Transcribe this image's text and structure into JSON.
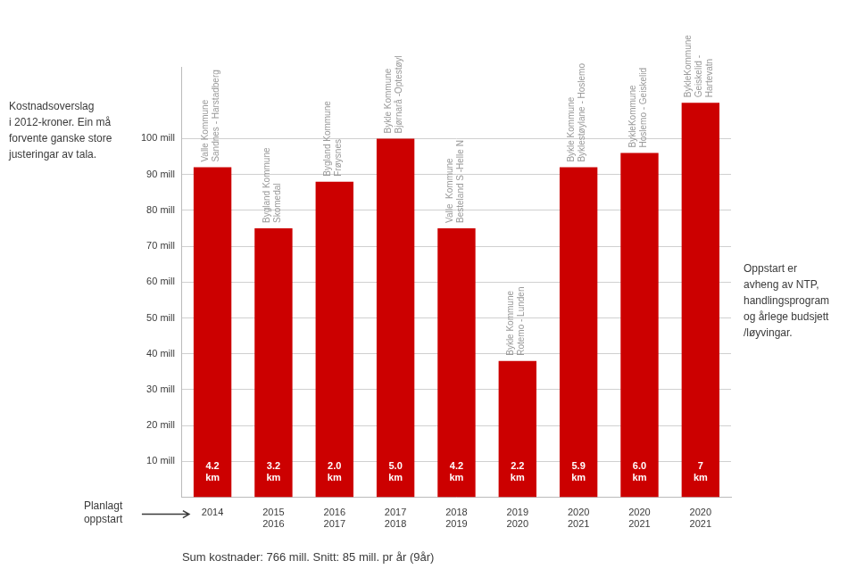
{
  "chart_data": {
    "type": "bar",
    "categories": [
      "2014",
      "2015\n2016",
      "2016\n2017",
      "2017\n2018",
      "2018\n2019",
      "2019\n2020",
      "2020\n2021",
      "2020\n2021",
      "2020\n2021"
    ],
    "values": [
      92,
      75,
      88,
      100,
      75,
      38,
      92,
      96,
      110
    ],
    "color": "#cc0000",
    "km_labels": [
      "4.2\nkm",
      "3.2\nkm",
      "2.0\nkm",
      "5.0\nkm",
      "4.2\nkm",
      "2.2\nkm",
      "5.9\nkm",
      "6.0\nkm",
      "7\nkm"
    ],
    "bar_labels": [
      "Valle Kommune\nSandnes - Harstadberg",
      "Bygland Kommune\nSkomedal",
      "Bygland Kommune\nFrøysnes",
      "Bykle Kommune\nBjørnarå -Optestøyl",
      "Valle  Kommune\nBesteland S -Helle N",
      "Bykle Kommune\nRotemo - Lunden",
      "Bykle Kommune\nByklestøylane - Hoslemo",
      "BykleKommune\nHoslemo - Geiskelid",
      "BykleKommune\nGeiskelid -\nHartevatn"
    ],
    "ylim": [
      0,
      120
    ],
    "yticks": [
      {
        "value": 10,
        "label": "10 mill"
      },
      {
        "value": 20,
        "label": "20 mill"
      },
      {
        "value": 30,
        "label": "30 mill"
      },
      {
        "value": 40,
        "label": "40 mill"
      },
      {
        "value": 50,
        "label": "50 mill"
      },
      {
        "value": 60,
        "label": "60 mill"
      },
      {
        "value": 70,
        "label": "70 mill"
      },
      {
        "value": 80,
        "label": "80 mill"
      },
      {
        "value": 90,
        "label": "90 mill"
      },
      {
        "value": 100,
        "label": "100 mill"
      }
    ],
    "grid": true,
    "annotations": [
      "Kostnadsoverslag\ni 2012-kroner. Ein må\nforvente ganske store\njusteringar av tala.",
      "Planlagt\noppstart",
      "Oppstart er\navheng av NTP,\nhandlingsprogram\nog årlege budsjett\n/løyvingar.",
      "Sum kostnader: 766 mill. Snitt: 85 mill. pr år (9år)"
    ]
  }
}
